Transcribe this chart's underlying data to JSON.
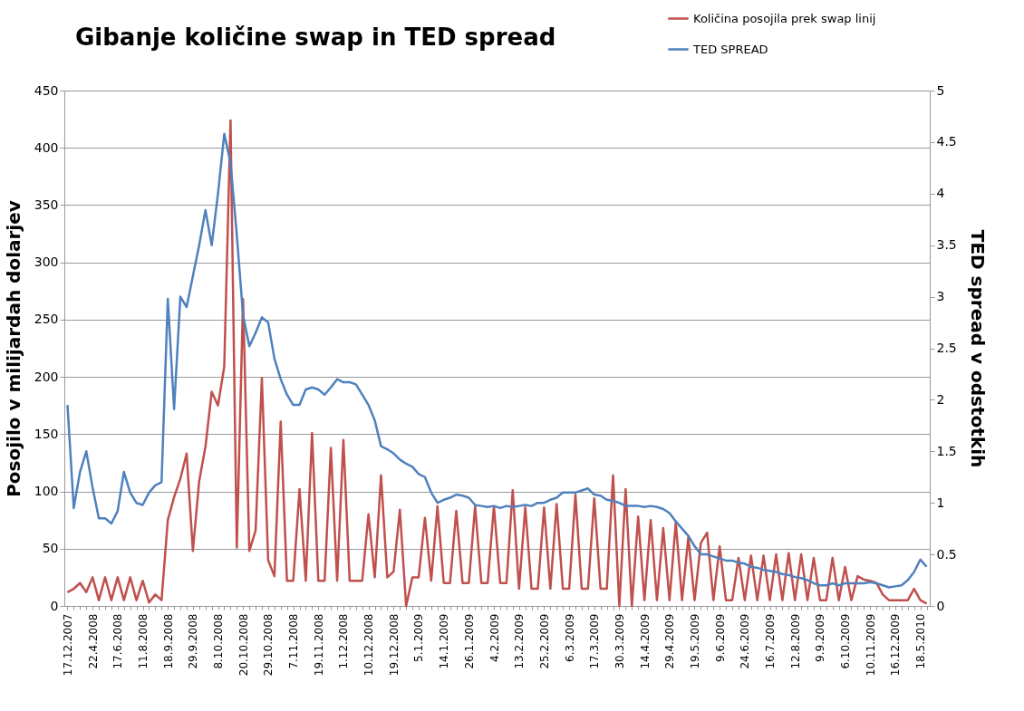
{
  "chart_data": {
    "type": "line",
    "title": "Gibanje količine swap in TED spread",
    "ylabel": "Posojilo v milijardah dolarjev",
    "y2label": "TED spread v odstotkih",
    "categories": [
      "17.12.2007",
      null,
      null,
      null,
      "22.4.2008",
      null,
      null,
      null,
      "17.6.2008",
      null,
      null,
      null,
      "11.8.2008",
      null,
      null,
      null,
      "18.9.2008",
      null,
      null,
      null,
      "29.9.2008",
      null,
      null,
      null,
      "8.10.2008",
      null,
      null,
      null,
      "20.10.2008",
      null,
      null,
      null,
      "29.10.2008",
      null,
      null,
      null,
      "7.11.2008",
      null,
      null,
      null,
      "19.11.2008",
      null,
      null,
      null,
      "1.12.2008",
      null,
      null,
      null,
      "10.12.2008",
      null,
      null,
      null,
      "19.12.2008",
      null,
      null,
      null,
      "5.1.2009",
      null,
      null,
      null,
      "14.1.2009",
      null,
      null,
      null,
      "26.1.2009",
      null,
      null,
      null,
      "4.2.2009",
      null,
      null,
      null,
      "13.2.2009",
      null,
      null,
      null,
      "25.2.2009",
      null,
      null,
      null,
      "6.3.2009",
      null,
      null,
      null,
      "17.3.2009",
      null,
      null,
      null,
      "30.3.2009",
      null,
      null,
      null,
      "14.4.2009",
      null,
      null,
      null,
      "29.4.2009",
      null,
      null,
      null,
      "19.5.2009",
      null,
      null,
      null,
      "9.6.2009",
      null,
      null,
      null,
      "24.6.2009",
      null,
      null,
      null,
      "16.7.2009",
      null,
      null,
      null,
      "12.8.2009",
      null,
      null,
      null,
      "9.9.2009",
      null,
      null,
      null,
      "6.10.2009",
      null,
      null,
      null,
      "10.11.2009",
      null,
      null,
      null,
      "16.12.2009",
      null,
      null,
      null,
      "18.5.2010",
      null
    ],
    "series": [
      {
        "name": "Količina posojila prek swap linij",
        "color": "#c0504d",
        "values": [
          12,
          15,
          20,
          12,
          25,
          5,
          25,
          5,
          25,
          5,
          25,
          5,
          22,
          3,
          10,
          5,
          75,
          95,
          111,
          133,
          48,
          109,
          139,
          187,
          175,
          209,
          424,
          51,
          268,
          48,
          66,
          199,
          40,
          26,
          161,
          22,
          22,
          102,
          22,
          151,
          22,
          22,
          138,
          22,
          145,
          22,
          22,
          22,
          80,
          25,
          114,
          25,
          30,
          84,
          0,
          25,
          25,
          77,
          22,
          87,
          20,
          20,
          83,
          20,
          20,
          87,
          20,
          20,
          87,
          20,
          20,
          101,
          15,
          86,
          15,
          15,
          86,
          15,
          89,
          15,
          15,
          97,
          15,
          15,
          94,
          15,
          15,
          114,
          0,
          102,
          0,
          78,
          5,
          75,
          5,
          68,
          5,
          73,
          5,
          60,
          5,
          55,
          64,
          5,
          52,
          5,
          5,
          42,
          5,
          44,
          5,
          44,
          5,
          45,
          5,
          46,
          5,
          45,
          5,
          42,
          5,
          5,
          42,
          5,
          34,
          5,
          26,
          23,
          22,
          20,
          10,
          5,
          5,
          5,
          5,
          15,
          5,
          2
        ]
      },
      {
        "name": "TED SPREAD",
        "color": "#4f81bd",
        "axis": "y2",
        "values": [
          1.95,
          0.95,
          1.3,
          1.5,
          1.15,
          0.85,
          0.85,
          0.8,
          0.92,
          1.3,
          1.1,
          1.0,
          0.98,
          1.1,
          1.17,
          1.2,
          2.98,
          1.91,
          3.0,
          2.9,
          3.2,
          3.5,
          3.84,
          3.5,
          4.0,
          4.58,
          4.3,
          3.6,
          2.82,
          2.52,
          2.65,
          2.8,
          2.75,
          2.4,
          2.2,
          2.05,
          1.95,
          1.95,
          2.1,
          2.12,
          2.1,
          2.05,
          2.12,
          2.2,
          2.17,
          2.17,
          2.15,
          2.05,
          1.95,
          1.8,
          1.55,
          1.52,
          1.48,
          1.42,
          1.38,
          1.35,
          1.28,
          1.25,
          1.1,
          1.0,
          1.03,
          1.05,
          1.08,
          1.07,
          1.05,
          0.98,
          0.97,
          0.96,
          0.97,
          0.95,
          0.97,
          0.96,
          0.97,
          0.98,
          0.97,
          1.0,
          1.0,
          1.03,
          1.05,
          1.1,
          1.1,
          1.1,
          1.12,
          1.14,
          1.08,
          1.07,
          1.03,
          1.02,
          1.0,
          0.97,
          0.97,
          0.97,
          0.96,
          0.97,
          0.96,
          0.94,
          0.9,
          0.82,
          0.75,
          0.68,
          0.58,
          0.5,
          0.5,
          0.48,
          0.46,
          0.44,
          0.44,
          0.42,
          0.41,
          0.38,
          0.37,
          0.35,
          0.34,
          0.33,
          0.31,
          0.3,
          0.28,
          0.27,
          0.25,
          0.22,
          0.2,
          0.2,
          0.22,
          0.2,
          0.22,
          0.22,
          0.22,
          0.22,
          0.23,
          0.22,
          0.2,
          0.18,
          0.19,
          0.2,
          0.25,
          0.33,
          0.45,
          0.38
        ]
      }
    ],
    "ylim": [
      0,
      450
    ],
    "yticks": [
      0,
      50,
      100,
      150,
      200,
      250,
      300,
      350,
      400,
      450
    ],
    "y2lim": [
      0,
      5
    ],
    "y2ticks": [
      0,
      0.5,
      1,
      1.5,
      2,
      2.5,
      3,
      3.5,
      4,
      4.5,
      5
    ],
    "grid": "y",
    "legend": "top right",
    "marker": "none",
    "line_style": "solid"
  }
}
